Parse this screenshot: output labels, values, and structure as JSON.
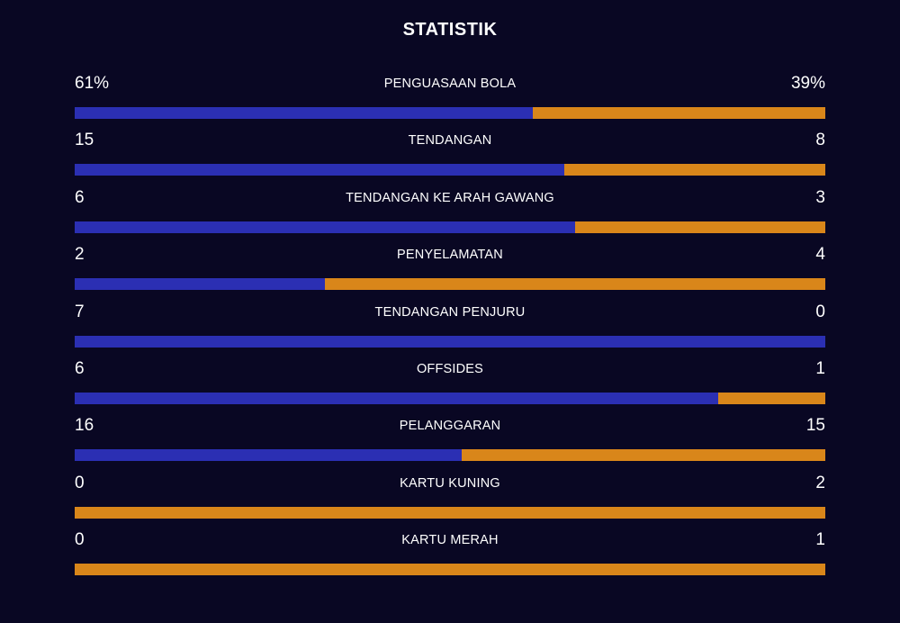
{
  "title": "STATISTIK",
  "colors": {
    "background": "#090723",
    "home": "#2b2fb3",
    "away": "#d9861a"
  },
  "stats": [
    {
      "label": "PENGUASAAN BOLA",
      "home": "61%",
      "away": "39%",
      "home_share": 0.61
    },
    {
      "label": "TENDANGAN",
      "home": "15",
      "away": "8",
      "home_share": 0.652
    },
    {
      "label": "TENDANGAN KE ARAH GAWANG",
      "home": "6",
      "away": "3",
      "home_share": 0.667
    },
    {
      "label": "PENYELAMATAN",
      "home": "2",
      "away": "4",
      "home_share": 0.333
    },
    {
      "label": "TENDANGAN PENJURU",
      "home": "7",
      "away": "0",
      "home_share": 1.0
    },
    {
      "label": "OFFSIDES",
      "home": "6",
      "away": "1",
      "home_share": 0.857
    },
    {
      "label": "PELANGGARAN",
      "home": "16",
      "away": "15",
      "home_share": 0.516
    },
    {
      "label": "KARTU KUNING",
      "home": "0",
      "away": "2",
      "home_share": 0.0
    },
    {
      "label": "KARTU MERAH",
      "home": "0",
      "away": "1",
      "home_share": 0.0
    }
  ]
}
